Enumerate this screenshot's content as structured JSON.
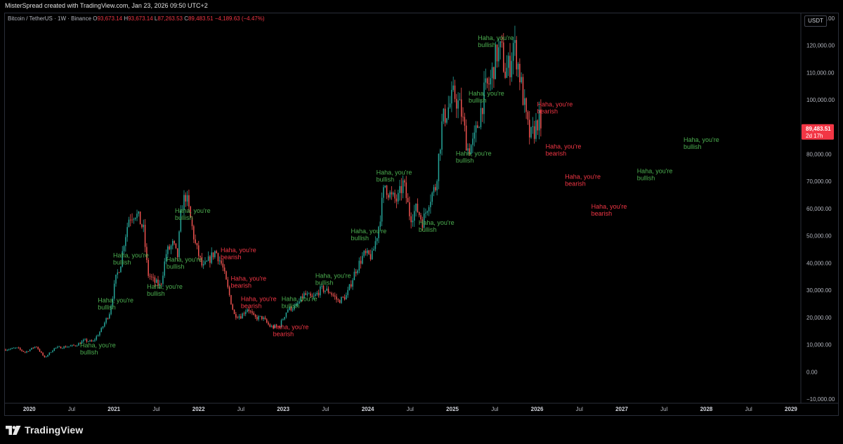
{
  "header": {
    "credit": "MisterSpread created with TradingView.com, Jan 23, 2026 09:50 UTC+2"
  },
  "legend": {
    "symbol": "Bitcoin / TetherUS · 1W · Binance",
    "open_label": "O",
    "open": "93,673.14",
    "high_label": "H",
    "high": "93,673.14",
    "low_label": "L",
    "low": "87,263.53",
    "close_label": "C",
    "close": "89,483.51",
    "change": "−4,189.63 (−4.47%)"
  },
  "currency": "USDT",
  "price_tag": {
    "price": "89,483.51",
    "countdown": "2d 17h",
    "value": 89483.51
  },
  "footer": {
    "brand": "TradingView"
  },
  "colors": {
    "up": "#26a69a",
    "down": "#ef5350",
    "bull_text": "#4caf50",
    "bear_text": "#f23645",
    "tag": "#f23645"
  },
  "chart_data": {
    "type": "candlestick",
    "interval": "1W",
    "x_ticks": [
      "2020",
      "Jul",
      "2021",
      "Jul",
      "2022",
      "Jul",
      "2023",
      "Jul",
      "2024",
      "Jul",
      "2025",
      "Jul",
      "2026",
      "Jul",
      "2027",
      "Jul",
      "2028",
      "Jul",
      "2029"
    ],
    "x_tick_pos": [
      2020,
      2020.5,
      2021,
      2021.5,
      2022,
      2022.5,
      2023,
      2023.5,
      2024,
      2024.5,
      2025,
      2025.5,
      2026,
      2026.5,
      2027,
      2027.5,
      2028,
      2028.5,
      2029
    ],
    "x_range": [
      2019.72,
      2029.1
    ],
    "y_ticks": [
      "130,000.00",
      "120,000.00",
      "110,000.00",
      "100,000.00",
      "90,000.00",
      "80,000.00",
      "70,000.00",
      "60,000.00",
      "50,000.00",
      "40,000.00",
      "30,000.00",
      "20,000.00",
      "10,000.00",
      "0.00",
      "−10,000.00"
    ],
    "y_tick_vals": [
      130000,
      120000,
      110000,
      100000,
      90000,
      80000,
      70000,
      60000,
      50000,
      40000,
      30000,
      20000,
      10000,
      0,
      -10000
    ],
    "y_range": [
      -11000,
      131500
    ],
    "price_path": [
      [
        2019.72,
        8200
      ],
      [
        2019.85,
        8800
      ],
      [
        2019.95,
        7200
      ],
      [
        2020.08,
        9500
      ],
      [
        2020.18,
        5200
      ],
      [
        2020.3,
        8800
      ],
      [
        2020.45,
        9300
      ],
      [
        2020.55,
        9800
      ],
      [
        2020.65,
        11600
      ],
      [
        2020.75,
        11000
      ],
      [
        2020.85,
        15500
      ],
      [
        2020.95,
        22000
      ],
      [
        2021.02,
        34000
      ],
      [
        2021.08,
        40000
      ],
      [
        2021.12,
        48000
      ],
      [
        2021.18,
        57000
      ],
      [
        2021.25,
        58500
      ],
      [
        2021.3,
        56000
      ],
      [
        2021.35,
        52000
      ],
      [
        2021.4,
        36000
      ],
      [
        2021.48,
        33000
      ],
      [
        2021.55,
        31500
      ],
      [
        2021.62,
        44000
      ],
      [
        2021.7,
        47000
      ],
      [
        2021.75,
        42000
      ],
      [
        2021.8,
        61000
      ],
      [
        2021.85,
        65000
      ],
      [
        2021.9,
        57000
      ],
      [
        2021.96,
        47000
      ],
      [
        2022.05,
        38000
      ],
      [
        2022.12,
        41000
      ],
      [
        2022.2,
        44500
      ],
      [
        2022.28,
        39000
      ],
      [
        2022.35,
        30000
      ],
      [
        2022.42,
        21000
      ],
      [
        2022.5,
        20500
      ],
      [
        2022.58,
        23500
      ],
      [
        2022.66,
        19800
      ],
      [
        2022.75,
        20000
      ],
      [
        2022.85,
        16500
      ],
      [
        2022.95,
        16600
      ],
      [
        2023.05,
        23000
      ],
      [
        2023.15,
        24000
      ],
      [
        2023.25,
        28500
      ],
      [
        2023.35,
        27000
      ],
      [
        2023.45,
        30500
      ],
      [
        2023.55,
        29500
      ],
      [
        2023.65,
        26000
      ],
      [
        2023.75,
        28000
      ],
      [
        2023.85,
        37000
      ],
      [
        2023.95,
        43000
      ],
      [
        2024.05,
        42500
      ],
      [
        2024.12,
        52000
      ],
      [
        2024.2,
        69000
      ],
      [
        2024.28,
        64000
      ],
      [
        2024.35,
        63000
      ],
      [
        2024.42,
        69500
      ],
      [
        2024.5,
        57000
      ],
      [
        2024.58,
        60000
      ],
      [
        2024.65,
        55000
      ],
      [
        2024.72,
        63000
      ],
      [
        2024.8,
        68000
      ],
      [
        2024.88,
        92000
      ],
      [
        2024.95,
        97000
      ],
      [
        2025.02,
        102000
      ],
      [
        2025.1,
        96000
      ],
      [
        2025.18,
        82000
      ],
      [
        2025.25,
        84000
      ],
      [
        2025.32,
        94000
      ],
      [
        2025.38,
        103000
      ],
      [
        2025.45,
        107000
      ],
      [
        2025.52,
        117000
      ],
      [
        2025.58,
        118000
      ],
      [
        2025.62,
        110000
      ],
      [
        2025.68,
        113000
      ],
      [
        2025.72,
        121000
      ],
      [
        2025.77,
        114000
      ],
      [
        2025.82,
        104000
      ],
      [
        2025.88,
        91000
      ],
      [
        2025.92,
        86000
      ],
      [
        2025.96,
        88000
      ],
      [
        2026.02,
        93500
      ],
      [
        2026.05,
        89483.51
      ]
    ],
    "annotations": [
      {
        "text1": "Haha, you're",
        "text2": "bullish",
        "type": "bull",
        "x": 2020.6,
        "y": 9000
      },
      {
        "text1": "Haha, you're",
        "text2": "bullish",
        "type": "bull",
        "x": 2020.81,
        "y": 25500
      },
      {
        "text1": "Haha, you're",
        "text2": "bullish",
        "type": "bull",
        "x": 2020.99,
        "y": 42000
      },
      {
        "text1": "Haha, you're",
        "text2": "bullish",
        "type": "bull",
        "x": 2021.39,
        "y": 30500
      },
      {
        "text1": "Haha, you're",
        "text2": "bullish",
        "type": "bull",
        "x": 2021.62,
        "y": 40500
      },
      {
        "text1": "Haha, you're",
        "text2": "bullish",
        "type": "bull",
        "x": 2021.72,
        "y": 58500
      },
      {
        "text1": "Haha, you're",
        "text2": "bearish",
        "type": "bear",
        "x": 2022.26,
        "y": 44000
      },
      {
        "text1": "Haha, you're",
        "text2": "bearish",
        "type": "bear",
        "x": 2022.38,
        "y": 33500
      },
      {
        "text1": "Haha, you're",
        "text2": "bearish",
        "type": "bear",
        "x": 2022.5,
        "y": 26000
      },
      {
        "text1": "Haha, you're",
        "text2": "bullish",
        "type": "bull",
        "x": 2022.98,
        "y": 26000
      },
      {
        "text1": "Haha, you're",
        "text2": "bearish",
        "type": "bear",
        "x": 2022.88,
        "y": 15700
      },
      {
        "text1": "Haha, you're",
        "text2": "bullish",
        "type": "bull",
        "x": 2023.38,
        "y": 34500
      },
      {
        "text1": "Haha, you're",
        "text2": "bullish",
        "type": "bull",
        "x": 2023.8,
        "y": 51000
      },
      {
        "text1": "Haha, you're",
        "text2": "bullish",
        "type": "bull",
        "x": 2024.1,
        "y": 72500
      },
      {
        "text1": "Haha, you're",
        "text2": "bullish",
        "type": "bull",
        "x": 2024.6,
        "y": 54000
      },
      {
        "text1": "Haha, you're",
        "text2": "bullish",
        "type": "bull",
        "x": 2025.04,
        "y": 79500
      },
      {
        "text1": "Haha, you're",
        "text2": "bullish",
        "type": "bull",
        "x": 2025.19,
        "y": 101500
      },
      {
        "text1": "Haha, you're",
        "text2": "bullish",
        "type": "bull",
        "x": 2025.3,
        "y": 122000
      },
      {
        "text1": "Haha, you're",
        "text2": "bearish",
        "type": "bear",
        "x": 2026.0,
        "y": 97500
      },
      {
        "text1": "Haha, you're",
        "text2": "bearish",
        "type": "bear",
        "x": 2026.1,
        "y": 82000
      },
      {
        "text1": "Haha, you're",
        "text2": "bearish",
        "type": "bear",
        "x": 2026.33,
        "y": 71000
      },
      {
        "text1": "Haha, you're",
        "text2": "bearish",
        "type": "bear",
        "x": 2026.64,
        "y": 60000
      },
      {
        "text1": "Haha, you're",
        "text2": "bullish",
        "type": "bull",
        "x": 2027.18,
        "y": 73000
      },
      {
        "text1": "Haha, you're",
        "text2": "bullish",
        "type": "bull",
        "x": 2027.73,
        "y": 84500
      }
    ]
  }
}
